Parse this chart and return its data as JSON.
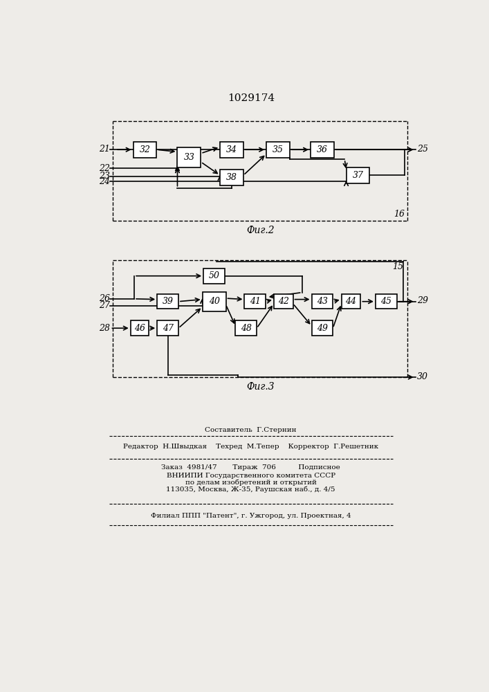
{
  "title": "1029174",
  "fig2_label": "Фиг.2",
  "fig3_label": "Фиг.3",
  "fig2_border_label": "16",
  "fig3_border_label": "15",
  "footer_lines": [
    "Составитель  Г.Стернин",
    "Редактор  Н.Швыдкая    Техред  М.Тепер    Корректор  Г.Решетник",
    "Заказ  4981/47       Тираж  706          Подписное",
    "ВНИИПИ Государственного комитета СССР",
    "по делам изобретений и открытий",
    "113035, Москва, Ж-35, Раушская наб., д. 4/5",
    "Филиал ППП \"Патент\", г. Ужгород, ул. Проектная, 4"
  ],
  "bg_color": "#eeece8",
  "box_color": "#ffffff",
  "box_edge": "#000000",
  "line_color": "#000000"
}
